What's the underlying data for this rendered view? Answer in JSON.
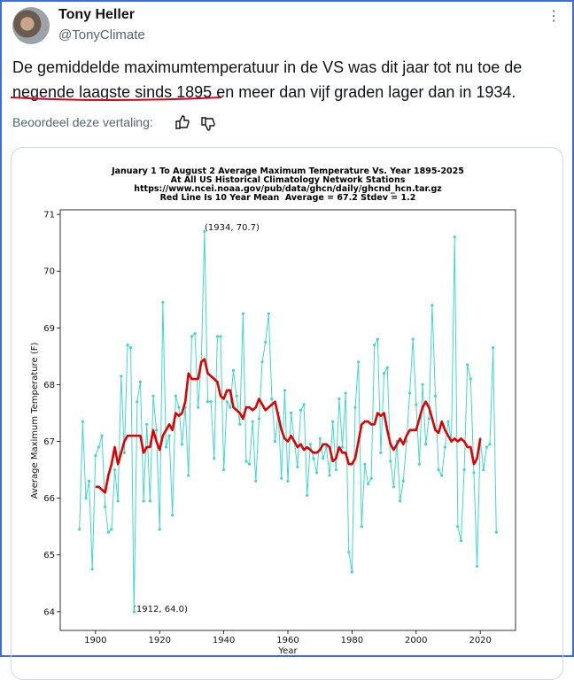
{
  "tweet": {
    "name": "Tony Heller",
    "handle": "@TonyClimate",
    "text_line1": "De gemiddelde maximumtemperatuur in de VS was dit jaar tot nu toe de",
    "text_highlight": "negende laagste sinds 1895",
    "text_rest": " en meer dan vijf graden lager dan in 1934.",
    "translation_prompt": "Beoordeel deze vertaling:"
  },
  "chart_data": {
    "type": "line",
    "title": [
      "January 1 To August 2 Average Maximum Temperature Vs. Year 1895-2025",
      "At All US Historical Climatology Network Stations",
      "https://www.ncei.noaa.gov/pub/data/ghcn/daily/ghcnd_hcn.tar.gz",
      "Red Line Is 10 Year Mean  Average = 67.2 Stdev = 1.2"
    ],
    "x_label": "Year",
    "y_label": "Average Maximum Temperature (F)",
    "annotations": [
      "(1934, 70.7)",
      "(1912, 64.0)"
    ],
    "x": [
      1895,
      1896,
      1897,
      1898,
      1899,
      1900,
      1901,
      1902,
      1903,
      1904,
      1905,
      1906,
      1907,
      1908,
      1909,
      1910,
      1911,
      1912,
      1913,
      1914,
      1915,
      1916,
      1917,
      1918,
      1919,
      1920,
      1921,
      1922,
      1923,
      1924,
      1925,
      1926,
      1927,
      1928,
      1929,
      1930,
      1931,
      1932,
      1933,
      1934,
      1935,
      1936,
      1937,
      1938,
      1939,
      1940,
      1941,
      1942,
      1943,
      1944,
      1945,
      1946,
      1947,
      1948,
      1949,
      1950,
      1951,
      1952,
      1953,
      1954,
      1955,
      1956,
      1957,
      1958,
      1959,
      1960,
      1961,
      1962,
      1963,
      1964,
      1965,
      1966,
      1967,
      1968,
      1969,
      1970,
      1971,
      1972,
      1973,
      1974,
      1975,
      1976,
      1977,
      1978,
      1979,
      1980,
      1981,
      1982,
      1983,
      1984,
      1985,
      1986,
      1987,
      1988,
      1989,
      1990,
      1991,
      1992,
      1993,
      1994,
      1995,
      1996,
      1997,
      1998,
      1999,
      2000,
      2001,
      2002,
      2003,
      2004,
      2005,
      2006,
      2007,
      2008,
      2009,
      2010,
      2011,
      2012,
      2013,
      2014,
      2015,
      2016,
      2017,
      2018,
      2019,
      2020,
      2021,
      2022,
      2023,
      2024,
      2025
    ],
    "series": [
      {
        "color": "#40d8cc",
        "markers": true,
        "values": [
          65.45,
          67.35,
          66.0,
          66.3,
          64.75,
          66.75,
          66.9,
          67.1,
          65.85,
          65.4,
          65.45,
          66.5,
          65.95,
          68.15,
          66.8,
          68.7,
          68.65,
          64.0,
          67.7,
          68.05,
          65.95,
          67.3,
          65.95,
          67.8,
          67.2,
          65.45,
          69.45,
          66.9,
          67.1,
          65.7,
          67.8,
          67.6,
          66.95,
          67.6,
          66.4,
          68.85,
          68.9,
          67.6,
          68.4,
          70.7,
          67.7,
          67.7,
          66.7,
          68.85,
          68.85,
          66.5,
          67.7,
          67.6,
          68.25,
          67.8,
          67.3,
          69.25,
          66.65,
          66.6,
          67.35,
          66.3,
          67.4,
          68.4,
          68.75,
          69.25,
          67.75,
          67.0,
          67.5,
          66.35,
          67.9,
          66.3,
          67.5,
          67.0,
          66.55,
          67.55,
          67.65,
          66.05,
          66.95,
          66.7,
          66.45,
          67.05,
          66.7,
          66.9,
          66.4,
          67.35,
          66.5,
          67.75,
          66.9,
          67.85,
          65.05,
          64.7,
          67.6,
          68.4,
          65.5,
          66.6,
          66.25,
          66.35,
          68.7,
          68.8,
          66.8,
          68.2,
          68.3,
          66.65,
          66.2,
          67.0,
          65.95,
          66.3,
          67.0,
          67.85,
          68.8,
          67.65,
          66.6,
          68.0,
          66.95,
          67.4,
          69.4,
          67.8,
          66.5,
          66.4,
          66.9,
          67.35,
          67.0,
          70.6,
          65.5,
          65.25,
          66.5,
          68.35,
          68.1,
          66.45,
          64.8,
          67.05,
          66.5,
          66.9,
          66.95,
          68.65,
          65.4
        ]
      },
      {
        "color": "#e00000",
        "markers": false,
        "values": [
          null,
          null,
          null,
          null,
          null,
          66.2,
          66.2,
          66.15,
          66.1,
          66.4,
          66.6,
          66.9,
          66.6,
          66.8,
          67.0,
          67.1,
          67.1,
          67.1,
          67.1,
          67.1,
          66.8,
          66.9,
          66.9,
          67.2,
          67.0,
          66.85,
          67.1,
          67.2,
          67.3,
          67.2,
          67.5,
          67.45,
          67.5,
          67.7,
          68.2,
          68.1,
          68.1,
          68.1,
          68.4,
          68.45,
          68.2,
          68.15,
          68.1,
          68.05,
          67.8,
          67.75,
          67.9,
          67.9,
          67.6,
          67.55,
          67.5,
          67.4,
          67.6,
          67.6,
          67.55,
          67.6,
          67.75,
          67.65,
          67.55,
          67.6,
          67.65,
          67.7,
          67.45,
          67.2,
          67.05,
          67.0,
          67.1,
          67.0,
          66.9,
          66.95,
          66.85,
          66.9,
          66.85,
          66.8,
          66.8,
          66.85,
          66.95,
          66.95,
          66.9,
          66.65,
          66.7,
          66.9,
          66.8,
          66.8,
          66.6,
          66.6,
          66.7,
          67.0,
          67.3,
          67.35,
          67.35,
          67.3,
          67.3,
          67.5,
          67.45,
          67.5,
          67.2,
          66.95,
          66.85,
          66.95,
          67.05,
          66.95,
          67.1,
          67.2,
          67.2,
          67.2,
          67.4,
          67.6,
          67.7,
          67.6,
          67.4,
          67.2,
          67.15,
          67.35,
          67.2,
          67.1,
          67.0,
          67.05,
          67.0,
          67.05,
          67.0,
          66.9,
          66.9,
          66.6,
          66.7,
          67.05,
          null,
          null,
          null,
          null,
          null
        ]
      }
    ],
    "xlim": [
      1889,
      2031
    ],
    "ylim": [
      63.67,
      71.08
    ],
    "xticks": [
      1900,
      1920,
      1940,
      1960,
      1980,
      2000,
      2020
    ],
    "yticks": [
      64,
      65,
      66,
      67,
      68,
      69,
      70,
      71
    ]
  }
}
